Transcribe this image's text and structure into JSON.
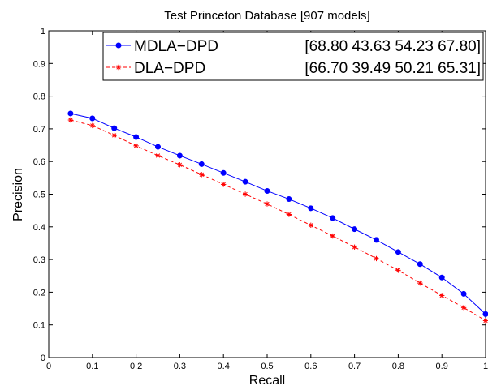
{
  "chart_data": {
    "type": "line",
    "title": "Test Princeton Database [907 models]",
    "xlabel": "Recall",
    "ylabel": "Precision",
    "xlim": [
      0,
      1
    ],
    "ylim": [
      0,
      1
    ],
    "grid": false,
    "legend_position": "top-right",
    "x_ticks": [
      "0",
      "0.1",
      "0.2",
      "0.3",
      "0.4",
      "0.5",
      "0.6",
      "0.7",
      "0.8",
      "0.9",
      "1"
    ],
    "y_ticks": [
      "0",
      "0.1",
      "0.2",
      "0.3",
      "0.4",
      "0.5",
      "0.6",
      "0.7",
      "0.8",
      "0.9",
      "1"
    ],
    "x": [
      0.05,
      0.1,
      0.15,
      0.2,
      0.25,
      0.3,
      0.35,
      0.4,
      0.45,
      0.5,
      0.55,
      0.6,
      0.65,
      0.7,
      0.75,
      0.8,
      0.85,
      0.9,
      0.95,
      1.0
    ],
    "series": [
      {
        "name": "MDLA−DPD",
        "stats": "[68.80 43.63 54.23 67.80]",
        "color": "#0000ff",
        "line_style": "solid",
        "marker": "dot",
        "values": [
          0.747,
          0.732,
          0.702,
          0.675,
          0.645,
          0.618,
          0.592,
          0.565,
          0.538,
          0.51,
          0.485,
          0.457,
          0.427,
          0.393,
          0.36,
          0.323,
          0.286,
          0.245,
          0.195,
          0.133
        ]
      },
      {
        "name": "DLA−DPD",
        "stats": "[66.70 39.49 50.21 65.31]",
        "color": "#ff0000",
        "line_style": "dashed",
        "marker": "star",
        "values": [
          0.727,
          0.71,
          0.68,
          0.648,
          0.618,
          0.59,
          0.56,
          0.53,
          0.5,
          0.47,
          0.438,
          0.405,
          0.372,
          0.338,
          0.303,
          0.267,
          0.228,
          0.19,
          0.153,
          0.113
        ]
      }
    ]
  }
}
